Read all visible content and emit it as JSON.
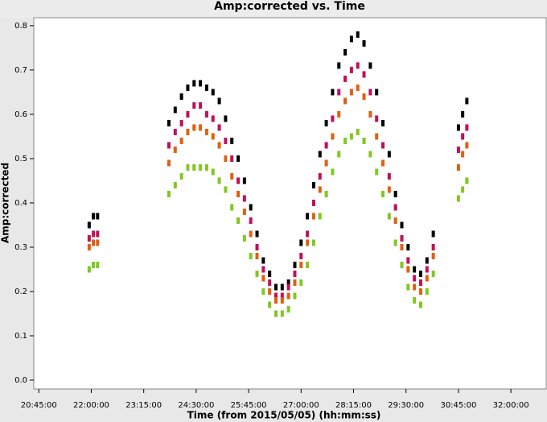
{
  "chart_data": {
    "type": "scatter",
    "title": "Amp:corrected vs. Time",
    "x_label": "Time (from 2015/05/05) (hh:mm:ss)",
    "y_label": "Amp:corrected",
    "x": [
      21.95,
      22.05,
      22.15,
      23.85,
      24.0,
      24.15,
      24.3,
      24.45,
      24.6,
      24.75,
      24.9,
      25.05,
      25.2,
      25.35,
      25.5,
      25.65,
      25.8,
      25.95,
      26.1,
      26.25,
      26.4,
      26.55,
      26.7,
      26.85,
      27.0,
      27.15,
      27.3,
      27.45,
      27.6,
      27.75,
      27.9,
      28.05,
      28.2,
      28.35,
      28.5,
      28.65,
      28.8,
      28.95,
      29.1,
      29.25,
      29.4,
      29.55,
      29.7,
      29.85,
      30.0,
      30.15,
      30.75,
      30.85,
      30.95
    ],
    "series": [
      {
        "color": "#000000",
        "values": [
          0.35,
          0.37,
          0.37,
          0.58,
          0.61,
          0.64,
          0.66,
          0.67,
          0.67,
          0.66,
          0.65,
          0.63,
          0.59,
          0.54,
          0.5,
          0.45,
          0.39,
          0.33,
          0.27,
          0.24,
          0.21,
          0.21,
          0.22,
          0.26,
          0.31,
          0.37,
          0.44,
          0.51,
          0.58,
          0.65,
          0.71,
          0.74,
          0.77,
          0.78,
          0.76,
          0.71,
          0.65,
          0.58,
          0.51,
          0.42,
          0.35,
          0.3,
          0.25,
          0.24,
          0.27,
          0.33,
          0.57,
          0.6,
          0.63
        ]
      },
      {
        "color": "#c0105a",
        "values": [
          0.32,
          0.33,
          0.33,
          0.53,
          0.56,
          0.58,
          0.6,
          0.62,
          0.62,
          0.6,
          0.59,
          0.57,
          0.54,
          0.5,
          0.45,
          0.41,
          0.36,
          0.3,
          0.25,
          0.22,
          0.19,
          0.19,
          0.21,
          0.24,
          0.28,
          0.33,
          0.4,
          0.46,
          0.53,
          0.59,
          0.65,
          0.68,
          0.7,
          0.71,
          0.69,
          0.65,
          0.59,
          0.53,
          0.46,
          0.39,
          0.32,
          0.27,
          0.23,
          0.22,
          0.25,
          0.3,
          0.52,
          0.55,
          0.57
        ]
      },
      {
        "color": "#e06010",
        "values": [
          0.3,
          0.31,
          0.31,
          0.49,
          0.52,
          0.54,
          0.56,
          0.57,
          0.57,
          0.56,
          0.55,
          0.53,
          0.5,
          0.46,
          0.42,
          0.38,
          0.33,
          0.28,
          0.23,
          0.2,
          0.18,
          0.18,
          0.19,
          0.22,
          0.26,
          0.31,
          0.37,
          0.43,
          0.49,
          0.55,
          0.6,
          0.63,
          0.65,
          0.66,
          0.64,
          0.6,
          0.55,
          0.49,
          0.43,
          0.36,
          0.3,
          0.25,
          0.21,
          0.2,
          0.23,
          0.28,
          0.48,
          0.51,
          0.53
        ]
      },
      {
        "color": "#80c820",
        "values": [
          0.25,
          0.26,
          0.26,
          0.42,
          0.44,
          0.46,
          0.48,
          0.48,
          0.48,
          0.48,
          0.47,
          0.45,
          0.43,
          0.39,
          0.36,
          0.32,
          0.28,
          0.24,
          0.2,
          0.17,
          0.15,
          0.15,
          0.16,
          0.19,
          0.22,
          0.26,
          0.31,
          0.37,
          0.42,
          0.47,
          0.51,
          0.54,
          0.55,
          0.56,
          0.54,
          0.51,
          0.47,
          0.42,
          0.37,
          0.31,
          0.26,
          0.21,
          0.18,
          0.17,
          0.2,
          0.24,
          0.41,
          0.43,
          0.45
        ]
      }
    ],
    "xlim": [
      20.63,
      32.86
    ],
    "ylim": [
      -0.02,
      0.818
    ],
    "xticks": [
      {
        "value": 20.75,
        "label": "20:45:00"
      },
      {
        "value": 22,
        "label": "22:00:00"
      },
      {
        "value": 23.25,
        "label": "23:15:00"
      },
      {
        "value": 24.5,
        "label": "24:30:00"
      },
      {
        "value": 25.75,
        "label": "25:45:00"
      },
      {
        "value": 27,
        "label": "27:00:00"
      },
      {
        "value": 28.25,
        "label": "28:15:00"
      },
      {
        "value": 29.5,
        "label": "29:30:00"
      },
      {
        "value": 30.75,
        "label": "30:45:00"
      },
      {
        "value": 32,
        "label": "32:00:00"
      }
    ],
    "yticks": [
      {
        "value": 0,
        "label": "0.0"
      },
      0.1,
      0.2,
      0.3,
      0.4,
      0.5,
      0.6,
      0.7,
      0.8
    ]
  }
}
